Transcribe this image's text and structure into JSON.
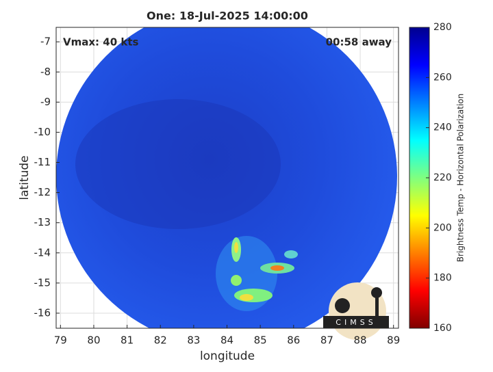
{
  "chart_data": {
    "type": "image",
    "title": "One: 18-Jul-2025 14:00:00",
    "x_label": "longitude",
    "y_label": "latitude",
    "annotations": [
      "Vmax: 40 kts",
      "00:58 away"
    ],
    "logo_text": "CIMSS",
    "xlim": [
      78.87,
      89.15
    ],
    "xticks": [
      79,
      80,
      81,
      82,
      83,
      84,
      85,
      86,
      87,
      88,
      89
    ],
    "ylim": [
      -16.5,
      -6.52
    ],
    "yticks": [
      -16,
      -15,
      -14,
      -13,
      -12,
      -11,
      -10,
      -9,
      -8,
      -7
    ],
    "grid": true,
    "colorbar": {
      "label": "Brightness Temp - Horizontal Polarization",
      "lim": [
        160,
        280
      ],
      "ticks": [
        160,
        180,
        200,
        220,
        240,
        260,
        280
      ]
    }
  }
}
